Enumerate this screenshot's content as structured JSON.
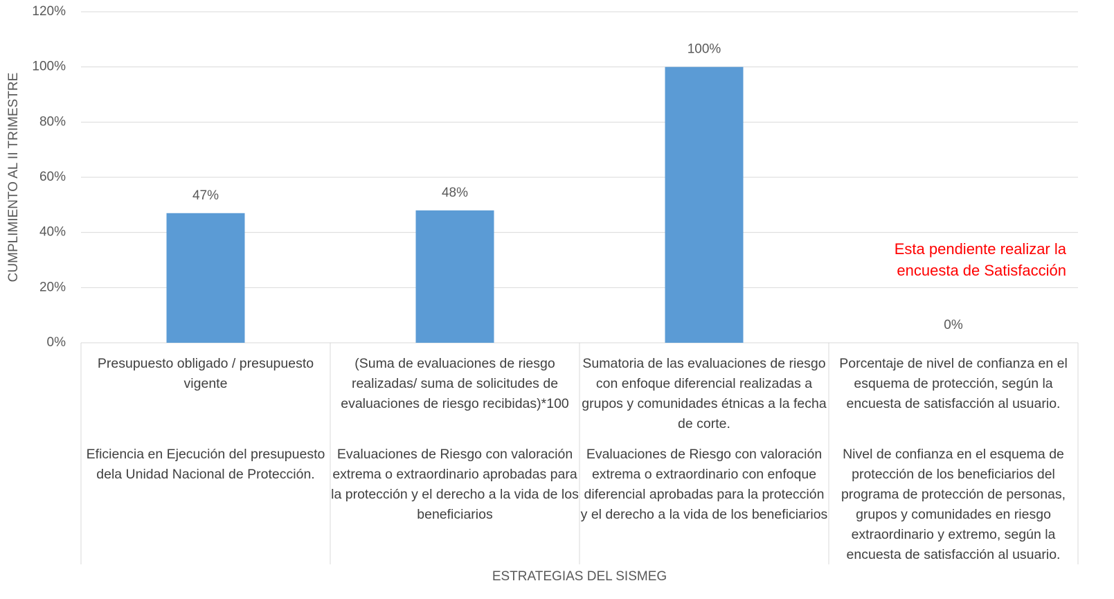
{
  "chart_data": {
    "type": "bar",
    "y_label": "CUMPLIMIENTO AL II TRIMESTRE",
    "x_label": "ESTRATEGIAS DEL SISMEG",
    "categories": [
      "Presupuesto obligado / presupuesto vigente",
      "(Suma de evaluaciones de riesgo realizadas/ suma de solicitudes de evaluaciones de riesgo recibidas)*100",
      "Sumatoria de las evaluaciones de riesgo con enfoque diferencial realizadas a grupos y comunidades étnicas a la fecha de corte.",
      "Porcentaje de nivel de confianza en el esquema de protección, según la encuesta de satisfacción al usuario."
    ],
    "category_groups": [
      "Eficiencia en Ejecución del presupuesto dela Unidad Nacional de Protección.",
      "Evaluaciones de Riesgo con valoración extrema o extraordinario aprobadas para la protección y el derecho a la vida de los beneficiarios",
      "Evaluaciones de Riesgo con valoración extrema o extraordinario con enfoque diferencial aprobadas para la protección y el derecho a la vida de los beneficiarios",
      "Nivel de confianza en el esquema de protección de los beneficiarios del programa de protección de personas, grupos y comunidades en riesgo extraordinario y extremo, según la encuesta de satisfacción al usuario."
    ],
    "values": [
      47,
      48,
      100,
      0
    ],
    "value_labels": [
      "47%",
      "48%",
      "100%",
      "0%"
    ],
    "color": "#5b9bd5",
    "annotation": "Esta pendiente realizar la encuesta de Satisfacción",
    "annotation_color": "#ff0000",
    "ylim": [
      0,
      120
    ],
    "yticks": [
      {
        "value": 0,
        "label": "0%"
      },
      {
        "value": 20,
        "label": "20%"
      },
      {
        "value": 40,
        "label": "40%"
      },
      {
        "value": 60,
        "label": "60%"
      },
      {
        "value": 80,
        "label": "80%"
      },
      {
        "value": 100,
        "label": "100%"
      },
      {
        "value": 120,
        "label": "120%"
      }
    ],
    "grid": true
  }
}
